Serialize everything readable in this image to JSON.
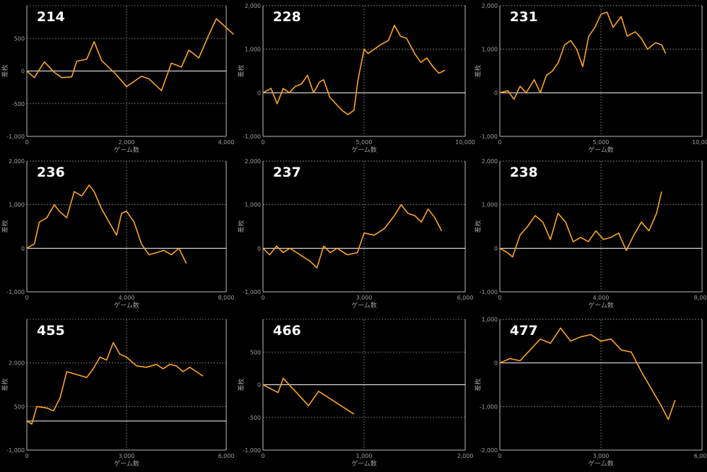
{
  "style": {
    "background": "#000000",
    "line_color": "#ffa51f",
    "zero_line_color": "#ffffff",
    "grid_color": "#808080",
    "frame_color": "#bbbbbb",
    "label_color": "#a0a0a0"
  },
  "chart_data": [
    {
      "type": "line",
      "title": "214",
      "xlabel": "ゲーム数",
      "ylabel": "差枚",
      "xlim": [
        0,
        4000
      ],
      "ylim": [
        -1000,
        1000
      ],
      "xticks": [
        0,
        2000,
        4000
      ],
      "xtick_labels": [
        "0",
        "2,000",
        "4,000"
      ],
      "yticks": [
        -1000,
        -500,
        0,
        500
      ],
      "ytick_labels": [
        "-1,000",
        "-500",
        "0",
        "500"
      ],
      "grid": true,
      "x": [
        0,
        150,
        350,
        550,
        700,
        900,
        1000,
        1200,
        1350,
        1500,
        1800,
        2000,
        2300,
        2450,
        2700,
        2900,
        3100,
        3250,
        3450,
        3650,
        3800,
        4150
      ],
      "y": [
        0,
        -100,
        140,
        -20,
        -100,
        -90,
        150,
        180,
        450,
        160,
        -60,
        -240,
        -80,
        -120,
        -300,
        120,
        60,
        320,
        200,
        550,
        800,
        560
      ]
    },
    {
      "type": "line",
      "title": "228",
      "xlabel": "ゲーム数",
      "ylabel": "差枚",
      "xlim": [
        0,
        10000
      ],
      "ylim": [
        -1000,
        2000
      ],
      "xticks": [
        0,
        5000,
        10000
      ],
      "xtick_labels": [
        "0",
        "5,000",
        "10,000"
      ],
      "yticks": [
        -1000,
        0,
        1000,
        2000
      ],
      "ytick_labels": [
        "-1,000",
        "0",
        "1,000",
        "2,000"
      ],
      "grid": true,
      "x": [
        0,
        400,
        700,
        1000,
        1300,
        1600,
        1900,
        2200,
        2500,
        2800,
        3000,
        3300,
        3600,
        3900,
        4200,
        4500,
        4700,
        5000,
        5200,
        5500,
        5800,
        6200,
        6500,
        6800,
        7100,
        7500,
        7800,
        8100,
        8400,
        8700,
        9000
      ],
      "y": [
        0,
        100,
        -250,
        100,
        0,
        150,
        200,
        400,
        0,
        250,
        300,
        -100,
        -250,
        -400,
        -500,
        -400,
        300,
        1000,
        900,
        1000,
        1100,
        1200,
        1550,
        1300,
        1250,
        900,
        700,
        800,
        600,
        450,
        520
      ]
    },
    {
      "type": "line",
      "title": "231",
      "xlabel": "ゲーム数",
      "ylabel": "差枚",
      "xlim": [
        0,
        10000
      ],
      "ylim": [
        -1000,
        2000
      ],
      "xticks": [
        0,
        5000,
        10000
      ],
      "xtick_labels": [
        "0",
        "5,000",
        "10,000"
      ],
      "yticks": [
        -1000,
        0,
        1000,
        2000
      ],
      "ytick_labels": [
        "-1,000",
        "0",
        "1,000",
        "2,000"
      ],
      "grid": true,
      "x": [
        0,
        400,
        700,
        1000,
        1300,
        1700,
        2000,
        2300,
        2600,
        2900,
        3200,
        3500,
        3800,
        4100,
        4400,
        4700,
        5000,
        5300,
        5600,
        6000,
        6300,
        6700,
        7000,
        7300,
        7700,
        8000,
        8200
      ],
      "y": [
        0,
        50,
        -150,
        150,
        0,
        300,
        0,
        400,
        500,
        700,
        1100,
        1200,
        1000,
        600,
        1300,
        1500,
        1800,
        1850,
        1500,
        1750,
        1300,
        1400,
        1250,
        1000,
        1150,
        1100,
        900
      ]
    },
    {
      "type": "line",
      "title": "236",
      "xlabel": "ゲーム数",
      "ylabel": "差枚",
      "xlim": [
        0,
        8000
      ],
      "ylim": [
        -1000,
        2000
      ],
      "xticks": [
        0,
        4000,
        8000
      ],
      "xtick_labels": [
        "0",
        "4,000",
        "8,000"
      ],
      "yticks": [
        -1000,
        0,
        1000,
        2000
      ],
      "ytick_labels": [
        "-1,000",
        "0",
        "1,000",
        "2,000"
      ],
      "grid": true,
      "x": [
        0,
        300,
        500,
        800,
        1100,
        1300,
        1600,
        1900,
        2200,
        2500,
        2700,
        3000,
        3300,
        3600,
        3800,
        4000,
        4300,
        4600,
        4900,
        5200,
        5500,
        5800,
        6100,
        6400
      ],
      "y": [
        0,
        100,
        600,
        700,
        1000,
        850,
        700,
        1300,
        1200,
        1450,
        1300,
        900,
        600,
        300,
        800,
        850,
        600,
        100,
        -150,
        -100,
        -50,
        -150,
        0,
        -350
      ]
    },
    {
      "type": "line",
      "title": "237",
      "xlabel": "ゲーム数",
      "ylabel": "差枚",
      "xlim": [
        0,
        6000
      ],
      "ylim": [
        -1000,
        2000
      ],
      "xticks": [
        0,
        3000,
        6000
      ],
      "xtick_labels": [
        "0",
        "3,000",
        "6,000"
      ],
      "yticks": [
        -1000,
        0,
        1000,
        2000
      ],
      "ytick_labels": [
        "-1,000",
        "0",
        "1,000",
        "2,000"
      ],
      "grid": true,
      "x": [
        0,
        200,
        400,
        600,
        800,
        1000,
        1200,
        1400,
        1600,
        1800,
        2000,
        2200,
        2500,
        2800,
        3000,
        3300,
        3600,
        3900,
        4100,
        4300,
        4500,
        4700,
        4900,
        5100,
        5300
      ],
      "y": [
        0,
        -150,
        50,
        -100,
        0,
        -100,
        -200,
        -300,
        -450,
        50,
        -100,
        0,
        -150,
        -100,
        350,
        300,
        450,
        750,
        1000,
        800,
        750,
        600,
        900,
        700,
        400
      ]
    },
    {
      "type": "line",
      "title": "238",
      "xlabel": "ゲーム数",
      "ylabel": "差枚",
      "xlim": [
        0,
        8000
      ],
      "ylim": [
        -1000,
        2000
      ],
      "xticks": [
        0,
        4000,
        8000
      ],
      "xtick_labels": [
        "0",
        "4,000",
        "8,000"
      ],
      "yticks": [
        -1000,
        0,
        1000,
        2000
      ],
      "ytick_labels": [
        "-1,000",
        "0",
        "1,000",
        "2,000"
      ],
      "grid": true,
      "x": [
        0,
        300,
        500,
        800,
        1100,
        1400,
        1700,
        2000,
        2300,
        2600,
        2900,
        3200,
        3500,
        3800,
        4100,
        4400,
        4700,
        5000,
        5300,
        5600,
        5900,
        6200,
        6400
      ],
      "y": [
        0,
        -100,
        -200,
        300,
        500,
        750,
        600,
        200,
        800,
        600,
        150,
        250,
        150,
        400,
        200,
        250,
        350,
        -50,
        300,
        600,
        400,
        800,
        1300
      ]
    },
    {
      "type": "line",
      "title": "455",
      "xlabel": "ゲーム数",
      "ylabel": "差枚",
      "xlim": [
        0,
        6000
      ],
      "ylim": [
        -1000,
        3500
      ],
      "xticks": [
        0,
        3000,
        6000
      ],
      "xtick_labels": [
        "0",
        "3,000",
        "6,000"
      ],
      "yticks": [
        -1000,
        500,
        2000
      ],
      "ytick_labels": [
        "-1,000",
        "500",
        "2,000"
      ],
      "grid": true,
      "x": [
        0,
        150,
        300,
        600,
        800,
        1000,
        1200,
        1500,
        1800,
        2000,
        2200,
        2400,
        2600,
        2800,
        3000,
        3300,
        3600,
        3900,
        4100,
        4300,
        4500,
        4700,
        4900,
        5100,
        5300
      ],
      "y": [
        0,
        -100,
        500,
        450,
        350,
        800,
        1700,
        1600,
        1500,
        1800,
        2200,
        2100,
        2700,
        2300,
        2200,
        1900,
        1850,
        1950,
        1800,
        1950,
        1900,
        1700,
        1850,
        1700,
        1550
      ]
    },
    {
      "type": "line",
      "title": "466",
      "xlabel": "ゲーム数",
      "ylabel": "差枚",
      "xlim": [
        0,
        2000
      ],
      "ylim": [
        -1000,
        1000
      ],
      "xticks": [
        0,
        1000,
        2000
      ],
      "xtick_labels": [
        "0",
        "1,000",
        "2,000"
      ],
      "yticks": [
        -1000,
        -500,
        0,
        500
      ],
      "ytick_labels": [
        "-1,000",
        "-500",
        "0",
        "500"
      ],
      "grid": true,
      "x": [
        0,
        150,
        200,
        450,
        550,
        900
      ],
      "y": [
        0,
        -120,
        100,
        -320,
        -100,
        -450
      ]
    },
    {
      "type": "line",
      "title": "477",
      "xlabel": "ゲーム数",
      "ylabel": "差枚",
      "xlim": [
        0,
        6000
      ],
      "ylim": [
        -2000,
        1000
      ],
      "xticks": [
        0,
        3000,
        6000
      ],
      "xtick_labels": [
        "0",
        "3,000",
        "6,000"
      ],
      "yticks": [
        -2000,
        -1000,
        0,
        1000
      ],
      "ytick_labels": [
        "-2,000",
        "-1,000",
        "0",
        "1,000"
      ],
      "grid": true,
      "x": [
        0,
        300,
        600,
        900,
        1200,
        1500,
        1800,
        2100,
        2400,
        2700,
        3000,
        3300,
        3600,
        3900,
        4200,
        4500,
        4800,
        5000,
        5200
      ],
      "y": [
        0,
        100,
        50,
        300,
        550,
        450,
        800,
        500,
        600,
        650,
        500,
        550,
        300,
        250,
        -200,
        -600,
        -1000,
        -1300,
        -850
      ]
    }
  ]
}
